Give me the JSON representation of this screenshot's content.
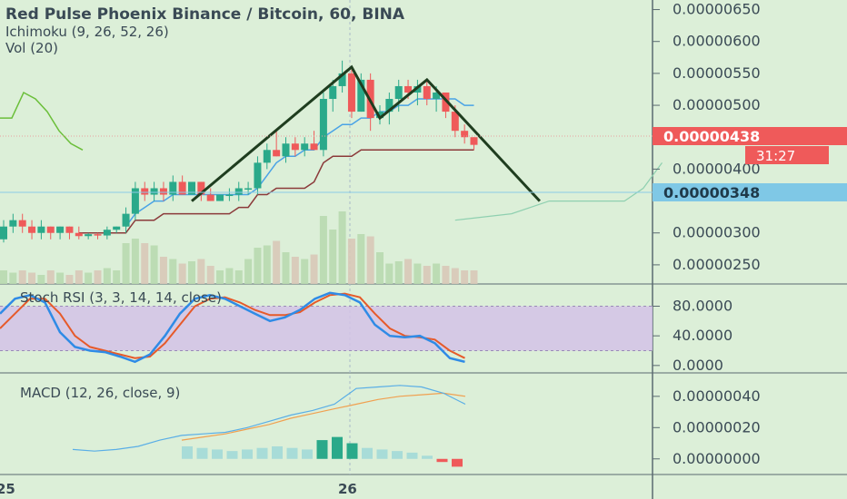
{
  "header": {
    "symbol_line": "Red Pulse Phoenix Binance / Bitcoin, 60, BINA",
    "ichimoku_label": "Ichimoku (9, 26, 52, 26)",
    "vol_label": "Vol (20)"
  },
  "colors": {
    "background": "#dcefd8",
    "up_candle": "#2aa98a",
    "down_candle": "#ef5a5a",
    "volume_up": "#b8d9b0",
    "volume_down": "#d8c8b8",
    "conversion_line": "#4aa3e6",
    "base_line": "#8b3a3a",
    "lagging_span": "#6bbf3a",
    "pattern_line": "#1f3d1f",
    "stoch_k": "#2f8be6",
    "stoch_d": "#e65a2a",
    "stoch_band": "#d4c2e8",
    "macd_line": "#5aaee6",
    "signal_line": "#f0a050",
    "price_badge": "#ef5a5a",
    "level_badge": "#7fc8e6"
  },
  "chart_data": [
    {
      "type": "candlestick",
      "title": "Red Pulse Phoenix Binance / Bitcoin, 60, BINA",
      "ylim": [
        2.2e-06,
        6.65e-06
      ],
      "y_ticks": [
        "0.00000650",
        "0.00000600",
        "0.00000550",
        "0.00000500",
        "0.00000450",
        "0.00000400",
        "0.00000300",
        "0.00000250"
      ],
      "y_tick_values": [
        6.5e-06,
        6e-06,
        5.5e-06,
        5e-06,
        4.5e-06,
        4e-06,
        3e-06,
        2.5e-06
      ],
      "x_ticks": [
        "25",
        "26"
      ],
      "last_price": "0.00000438",
      "last_price_value": 4.38e-06,
      "countdown": "31:27",
      "level_price": "0.00000348",
      "level_value": 3.48e-06,
      "candles": [
        {
          "o": 2.9e-06,
          "h": 3.2e-06,
          "l": 2.85e-06,
          "c": 3.1e-06
        },
        {
          "o": 3.1e-06,
          "h": 3.3e-06,
          "l": 3e-06,
          "c": 3.2e-06
        },
        {
          "o": 3.2e-06,
          "h": 3.3e-06,
          "l": 3e-06,
          "c": 3.1e-06
        },
        {
          "o": 3.1e-06,
          "h": 3.2e-06,
          "l": 2.9e-06,
          "c": 3e-06
        },
        {
          "o": 3e-06,
          "h": 3.2e-06,
          "l": 2.9e-06,
          "c": 3.1e-06
        },
        {
          "o": 3.1e-06,
          "h": 3.1e-06,
          "l": 2.9e-06,
          "c": 3e-06
        },
        {
          "o": 3e-06,
          "h": 3.1e-06,
          "l": 2.9e-06,
          "c": 3.1e-06
        },
        {
          "o": 3.1e-06,
          "h": 3.1e-06,
          "l": 2.9e-06,
          "c": 3e-06
        },
        {
          "o": 3e-06,
          "h": 3.1e-06,
          "l": 2.9e-06,
          "c": 2.95e-06
        },
        {
          "o": 2.95e-06,
          "h": 3e-06,
          "l": 2.9e-06,
          "c": 2.98e-06
        },
        {
          "o": 2.98e-06,
          "h": 3e-06,
          "l": 2.9e-06,
          "c": 2.96e-06
        },
        {
          "o": 2.96e-06,
          "h": 3.1e-06,
          "l": 2.9e-06,
          "c": 3.05e-06
        },
        {
          "o": 3.05e-06,
          "h": 3.1e-06,
          "l": 3e-06,
          "c": 3.1e-06
        },
        {
          "o": 3.1e-06,
          "h": 3.4e-06,
          "l": 3e-06,
          "c": 3.3e-06
        },
        {
          "o": 3.3e-06,
          "h": 3.8e-06,
          "l": 3.2e-06,
          "c": 3.7e-06
        },
        {
          "o": 3.7e-06,
          "h": 3.8e-06,
          "l": 3.5e-06,
          "c": 3.6e-06
        },
        {
          "o": 3.6e-06,
          "h": 3.8e-06,
          "l": 3.5e-06,
          "c": 3.7e-06
        },
        {
          "o": 3.7e-06,
          "h": 3.8e-06,
          "l": 3.5e-06,
          "c": 3.6e-06
        },
        {
          "o": 3.6e-06,
          "h": 3.9e-06,
          "l": 3.5e-06,
          "c": 3.8e-06
        },
        {
          "o": 3.8e-06,
          "h": 3.9e-06,
          "l": 3.6e-06,
          "c": 3.6e-06
        },
        {
          "o": 3.6e-06,
          "h": 3.8e-06,
          "l": 3.6e-06,
          "c": 3.8e-06
        },
        {
          "o": 3.8e-06,
          "h": 3.8e-06,
          "l": 3.5e-06,
          "c": 3.6e-06
        },
        {
          "o": 3.6e-06,
          "h": 3.7e-06,
          "l": 3.5e-06,
          "c": 3.5e-06
        },
        {
          "o": 3.5e-06,
          "h": 3.6e-06,
          "l": 3.5e-06,
          "c": 3.6e-06
        },
        {
          "o": 3.6e-06,
          "h": 3.7e-06,
          "l": 3.5e-06,
          "c": 3.6e-06
        },
        {
          "o": 3.6e-06,
          "h": 3.8e-06,
          "l": 3.5e-06,
          "c": 3.7e-06
        },
        {
          "o": 3.7e-06,
          "h": 3.8e-06,
          "l": 3.6e-06,
          "c": 3.7e-06
        },
        {
          "o": 3.7e-06,
          "h": 4.2e-06,
          "l": 3.6e-06,
          "c": 4.1e-06
        },
        {
          "o": 4.1e-06,
          "h": 4.4e-06,
          "l": 4e-06,
          "c": 4.3e-06
        },
        {
          "o": 4.3e-06,
          "h": 4.6e-06,
          "l": 4.2e-06,
          "c": 4.2e-06
        },
        {
          "o": 4.2e-06,
          "h": 4.5e-06,
          "l": 4.1e-06,
          "c": 4.4e-06
        },
        {
          "o": 4.4e-06,
          "h": 4.5e-06,
          "l": 4.2e-06,
          "c": 4.3e-06
        },
        {
          "o": 4.3e-06,
          "h": 4.5e-06,
          "l": 4.2e-06,
          "c": 4.4e-06
        },
        {
          "o": 4.4e-06,
          "h": 4.6e-06,
          "l": 4.3e-06,
          "c": 4.3e-06
        },
        {
          "o": 4.3e-06,
          "h": 5.2e-06,
          "l": 4.2e-06,
          "c": 5.1e-06
        },
        {
          "o": 5.1e-06,
          "h": 5.4e-06,
          "l": 4.9e-06,
          "c": 5.3e-06
        },
        {
          "o": 5.3e-06,
          "h": 5.7e-06,
          "l": 5.2e-06,
          "c": 5.5e-06
        },
        {
          "o": 5.5e-06,
          "h": 5.6e-06,
          "l": 4.8e-06,
          "c": 4.9e-06
        },
        {
          "o": 4.9e-06,
          "h": 5.5e-06,
          "l": 4.9e-06,
          "c": 5.4e-06
        },
        {
          "o": 5.4e-06,
          "h": 5.5e-06,
          "l": 4.6e-06,
          "c": 4.8e-06
        },
        {
          "o": 4.8e-06,
          "h": 5e-06,
          "l": 4.7e-06,
          "c": 4.9e-06
        },
        {
          "o": 4.9e-06,
          "h": 5.2e-06,
          "l": 4.7e-06,
          "c": 5.1e-06
        },
        {
          "o": 5.1e-06,
          "h": 5.4e-06,
          "l": 4.9e-06,
          "c": 5.3e-06
        },
        {
          "o": 5.3e-06,
          "h": 5.4e-06,
          "l": 5.1e-06,
          "c": 5.2e-06
        },
        {
          "o": 5.2e-06,
          "h": 5.4e-06,
          "l": 5e-06,
          "c": 5.3e-06
        },
        {
          "o": 5.3e-06,
          "h": 5.4e-06,
          "l": 5e-06,
          "c": 5.1e-06
        },
        {
          "o": 5.1e-06,
          "h": 5.3e-06,
          "l": 4.9e-06,
          "c": 5.2e-06
        },
        {
          "o": 5.2e-06,
          "h": 5.2e-06,
          "l": 4.8e-06,
          "c": 4.9e-06
        },
        {
          "o": 4.9e-06,
          "h": 5e-06,
          "l": 4.5e-06,
          "c": 4.6e-06
        },
        {
          "o": 4.6e-06,
          "h": 4.7e-06,
          "l": 4.4e-06,
          "c": 4.5e-06
        },
        {
          "o": 4.5e-06,
          "h": 4.5e-06,
          "l": 4.3e-06,
          "c": 4.38e-06
        }
      ],
      "volume": [
        0.3,
        0.25,
        0.3,
        0.25,
        0.2,
        0.3,
        0.25,
        0.2,
        0.3,
        0.25,
        0.3,
        0.35,
        0.3,
        0.9,
        1.0,
        0.9,
        0.85,
        0.6,
        0.55,
        0.45,
        0.5,
        0.55,
        0.4,
        0.3,
        0.35,
        0.3,
        0.55,
        0.8,
        0.85,
        0.95,
        0.7,
        0.6,
        0.55,
        0.65,
        1.5,
        1.2,
        1.6,
        1.0,
        1.1,
        1.05,
        0.7,
        0.45,
        0.5,
        0.55,
        0.45,
        0.4,
        0.45,
        0.4,
        0.35,
        0.3,
        0.3
      ],
      "conversion_line": [
        null,
        null,
        null,
        null,
        null,
        null,
        null,
        null,
        null,
        null,
        null,
        null,
        null,
        3.1e-06,
        3.3e-06,
        3.4e-06,
        3.5e-06,
        3.5e-06,
        3.6e-06,
        3.6e-06,
        3.6e-06,
        3.6e-06,
        3.6e-06,
        3.6e-06,
        3.6e-06,
        3.6e-06,
        3.6e-06,
        3.7e-06,
        3.9e-06,
        4.1e-06,
        4.2e-06,
        4.2e-06,
        4.3e-06,
        4.3e-06,
        4.5e-06,
        4.6e-06,
        4.7e-06,
        4.7e-06,
        4.8e-06,
        4.8e-06,
        4.9e-06,
        4.9e-06,
        5e-06,
        5e-06,
        5.1e-06,
        5.1e-06,
        5.1e-06,
        5.1e-06,
        5.1e-06,
        5e-06,
        5e-06
      ],
      "base_line": [
        null,
        null,
        null,
        null,
        null,
        null,
        null,
        null,
        3e-06,
        3e-06,
        3e-06,
        3e-06,
        3e-06,
        3e-06,
        3.2e-06,
        3.2e-06,
        3.2e-06,
        3.3e-06,
        3.3e-06,
        3.3e-06,
        3.3e-06,
        3.3e-06,
        3.3e-06,
        3.3e-06,
        3.3e-06,
        3.4e-06,
        3.4e-06,
        3.6e-06,
        3.6e-06,
        3.7e-06,
        3.7e-06,
        3.7e-06,
        3.7e-06,
        3.8e-06,
        4.1e-06,
        4.2e-06,
        4.2e-06,
        4.2e-06,
        4.3e-06,
        4.3e-06,
        4.3e-06,
        4.3e-06,
        4.3e-06,
        4.3e-06,
        4.3e-06,
        4.3e-06,
        4.3e-06,
        4.3e-06,
        4.3e-06,
        4.3e-06,
        4.3e-06
      ],
      "lagging_span": [
        4.8e-06,
        4.8e-06,
        5.2e-06,
        5.1e-06,
        4.9e-06,
        4.6e-06,
        4.4e-06,
        4.3e-06
      ],
      "pattern_points": [
        {
          "i": 20,
          "v": 3.5e-06
        },
        {
          "i": 37,
          "v": 5.6e-06
        },
        {
          "i": 40,
          "v": 4.8e-06
        },
        {
          "i": 45,
          "v": 5.4e-06
        },
        {
          "i": 57,
          "v": 3.5e-06
        }
      ],
      "cloud_line": [
        {
          "i": 48,
          "v": 3.2e-06
        },
        {
          "i": 54,
          "v": 3.3e-06
        },
        {
          "i": 58,
          "v": 3.5e-06
        },
        {
          "i": 66,
          "v": 3.5e-06
        },
        {
          "i": 68,
          "v": 3.7e-06
        },
        {
          "i": 70,
          "v": 4.1e-06
        }
      ]
    },
    {
      "type": "line",
      "title": "Stoch RSI (3, 3, 14, 14, close)",
      "ylim": [
        -10,
        110
      ],
      "y_ticks": [
        "80.0000",
        "40.0000",
        "0.0000"
      ],
      "y_tick_values": [
        80,
        40,
        0
      ],
      "band": [
        20,
        80
      ],
      "series": [
        {
          "name": "K",
          "values": [
            70,
            90,
            95,
            85,
            45,
            25,
            20,
            18,
            12,
            5,
            15,
            40,
            70,
            90,
            95,
            90,
            80,
            70,
            60,
            65,
            75,
            90,
            98,
            95,
            85,
            55,
            40,
            38,
            40,
            30,
            10,
            5
          ]
        },
        {
          "name": "D",
          "values": [
            50,
            70,
            90,
            90,
            70,
            40,
            25,
            20,
            15,
            10,
            12,
            30,
            55,
            80,
            90,
            92,
            85,
            75,
            68,
            68,
            72,
            85,
            95,
            97,
            92,
            70,
            50,
            40,
            38,
            35,
            20,
            10
          ]
        }
      ]
    },
    {
      "type": "line",
      "title": "MACD (12, 26, close, 9)",
      "ylim": [
        -1e-07,
        5.5e-07
      ],
      "y_ticks": [
        "0.00000040",
        "0.00000020",
        "0.00000000"
      ],
      "y_tick_values": [
        4e-07,
        2e-07,
        0
      ],
      "series": [
        {
          "name": "MACD",
          "values": [
            6e-08,
            5e-08,
            6e-08,
            8e-08,
            1.2e-07,
            1.5e-07,
            1.6e-07,
            1.7e-07,
            2e-07,
            2.4e-07,
            2.8e-07,
            3.1e-07,
            3.5e-07,
            4.5e-07,
            4.6e-07,
            4.7e-07,
            4.6e-07,
            4.2e-07,
            3.5e-07
          ]
        },
        {
          "name": "Signal",
          "values": [
            null,
            null,
            null,
            null,
            null,
            1.2e-07,
            1.4e-07,
            1.6e-07,
            1.9e-07,
            2.2e-07,
            2.6e-07,
            2.9e-07,
            3.2e-07,
            3.5e-07,
            3.8e-07,
            4e-07,
            4.1e-07,
            4.2e-07,
            4e-07
          ]
        }
      ],
      "histogram": [
        8e-08,
        7e-08,
        6e-08,
        5e-08,
        6e-08,
        7e-08,
        8e-08,
        7e-08,
        6e-08,
        1.2e-07,
        1.4e-07,
        1e-07,
        7e-08,
        6e-08,
        5e-08,
        4e-08,
        2e-08,
        -2e-08,
        -5e-08
      ]
    }
  ]
}
